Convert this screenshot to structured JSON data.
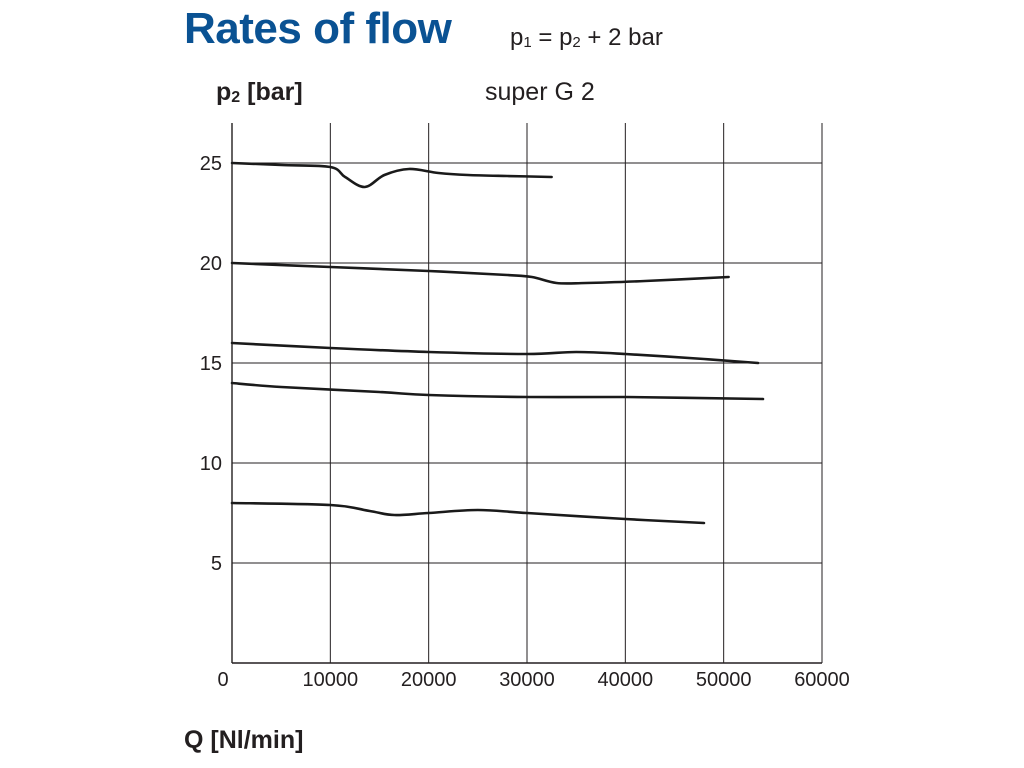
{
  "header": {
    "title": "Rates of flow",
    "formula": {
      "p1": "p",
      "p1_sub": "1",
      "eq": " = ",
      "p2": "p",
      "p2_sub": "2",
      "rest": " + 2 bar"
    }
  },
  "colors": {
    "title": "#0a5293",
    "text": "#231f20",
    "grid": "#231f20",
    "curve": "#1a1a1a"
  },
  "chart_data": {
    "type": "line",
    "title": "Rates of flow",
    "subtitle": "super G 2",
    "xlabel": "Q [Nl/min]",
    "ylabel": {
      "main": "p",
      "sub": "2",
      "unit": " [bar]"
    },
    "xlim": [
      0,
      60000
    ],
    "ylim": [
      0,
      27
    ],
    "xticks": [
      0,
      10000,
      20000,
      30000,
      40000,
      50000,
      60000
    ],
    "xtick_labels": [
      "0",
      "10000",
      "20000",
      "30000",
      "40000",
      "50000",
      "60000"
    ],
    "yticks": [
      5,
      10,
      15,
      20,
      25
    ],
    "ytick_labels": [
      "5",
      "10",
      "15",
      "20",
      "25"
    ],
    "grid": true,
    "series": [
      {
        "x": [
          0,
          5000,
          10000,
          11500,
          13500,
          15500,
          18000,
          21000,
          24000,
          28000,
          32500
        ],
        "y": [
          25,
          24.9,
          24.8,
          24.3,
          23.8,
          24.4,
          24.7,
          24.5,
          24.4,
          24.35,
          24.3
        ]
      },
      {
        "x": [
          0,
          10000,
          20000,
          28000,
          30500,
          33000,
          36000,
          42000,
          50500
        ],
        "y": [
          20,
          19.8,
          19.6,
          19.4,
          19.3,
          19.0,
          19.0,
          19.1,
          19.3
        ]
      },
      {
        "x": [
          0,
          10000,
          20000,
          30000,
          35000,
          40000,
          48000,
          53500
        ],
        "y": [
          16,
          15.75,
          15.55,
          15.45,
          15.55,
          15.45,
          15.2,
          15.0
        ]
      },
      {
        "x": [
          0,
          5000,
          15000,
          20000,
          30000,
          40000,
          54000
        ],
        "y": [
          14,
          13.8,
          13.55,
          13.4,
          13.3,
          13.3,
          13.2
        ]
      },
      {
        "x": [
          0,
          10000,
          14000,
          16500,
          20000,
          25000,
          30000,
          40000,
          48000
        ],
        "y": [
          8,
          7.9,
          7.6,
          7.4,
          7.5,
          7.65,
          7.5,
          7.2,
          7.0
        ]
      }
    ]
  }
}
